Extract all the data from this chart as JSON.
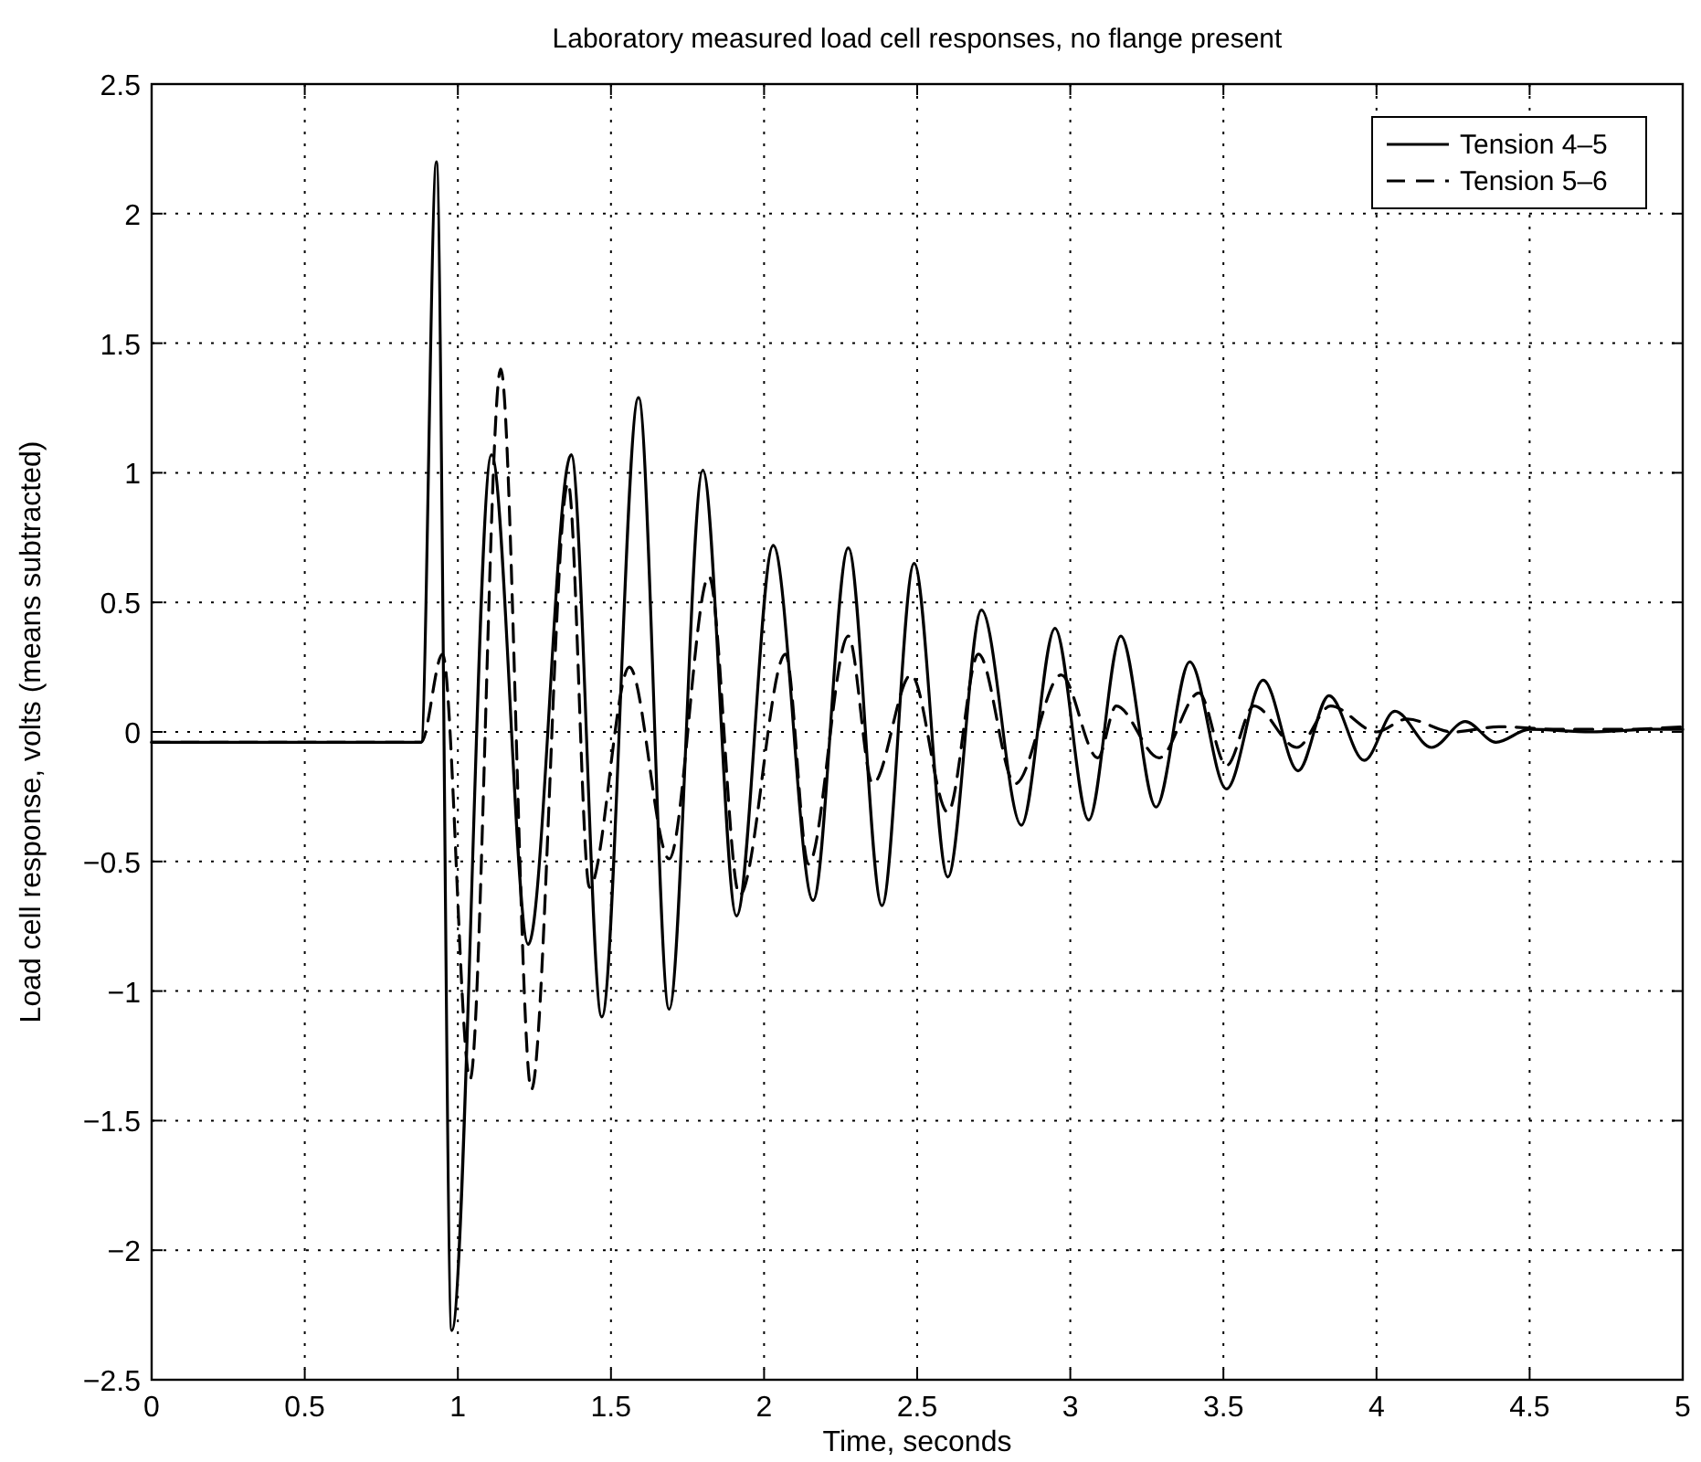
{
  "chart_data": {
    "type": "line",
    "title": "Laboratory measured load cell responses, no flange present",
    "xlabel": "Time, seconds",
    "ylabel": "Load cell response, volts (means subtracted)",
    "xlim": [
      0,
      5
    ],
    "ylim": [
      -2.5,
      2.5
    ],
    "xticks": [
      0,
      0.5,
      1,
      1.5,
      2,
      2.5,
      3,
      3.5,
      4,
      4.5,
      5
    ],
    "yticks": [
      -2.5,
      -2,
      -1.5,
      -1,
      -0.5,
      0,
      0.5,
      1,
      1.5,
      2,
      2.5
    ],
    "grid": true,
    "legend": "top right",
    "series": [
      {
        "name": "Tension 4–5",
        "color": "#000000",
        "line_style": "solid",
        "x": [
          0,
          0.5,
          0.88,
          0.93,
          0.98,
          1.11,
          1.23,
          1.37,
          1.47,
          1.59,
          1.69,
          1.8,
          1.91,
          2.03,
          2.16,
          2.275,
          2.385,
          2.49,
          2.6,
          2.71,
          2.84,
          2.95,
          3.06,
          3.165,
          3.28,
          3.39,
          3.51,
          3.63,
          3.744,
          3.845,
          3.96,
          4.06,
          4.18,
          4.29,
          4.39,
          4.5,
          4.7,
          4.9,
          5
        ],
        "values": [
          -0.04,
          -0.04,
          -0.04,
          2.2,
          -2.31,
          1.07,
          -0.82,
          1.07,
          -1.1,
          1.29,
          -1.07,
          1.01,
          -0.71,
          0.72,
          -0.65,
          0.71,
          -0.67,
          0.65,
          -0.56,
          0.47,
          -0.36,
          0.4,
          -0.34,
          0.37,
          -0.29,
          0.27,
          -0.22,
          0.2,
          -0.15,
          0.14,
          -0.11,
          0.08,
          -0.06,
          0.04,
          -0.04,
          0.01,
          0.0,
          0.01,
          0.01
        ]
      },
      {
        "name": "Tension 5–6",
        "color": "#000000",
        "line_style": "dashed",
        "x": [
          0,
          0.5,
          0.88,
          0.95,
          1.04,
          1.14,
          1.24,
          1.36,
          1.43,
          1.56,
          1.69,
          1.82,
          1.92,
          2.07,
          2.145,
          2.275,
          2.355,
          2.48,
          2.6,
          2.7,
          2.82,
          2.97,
          3.09,
          3.15,
          3.29,
          3.42,
          3.51,
          3.6,
          3.74,
          3.85,
          4.0,
          4.1,
          4.25,
          4.4,
          4.6,
          4.8,
          5
        ],
        "values": [
          -0.04,
          -0.04,
          -0.04,
          0.3,
          -1.34,
          1.4,
          -1.38,
          0.96,
          -0.6,
          0.25,
          -0.49,
          0.6,
          -0.63,
          0.3,
          -0.51,
          0.37,
          -0.2,
          0.22,
          -0.31,
          0.3,
          -0.2,
          0.22,
          -0.1,
          0.1,
          -0.1,
          0.15,
          -0.13,
          0.1,
          -0.06,
          0.1,
          0.0,
          0.05,
          0.0,
          0.02,
          0.01,
          0.01,
          0.02
        ]
      }
    ]
  }
}
